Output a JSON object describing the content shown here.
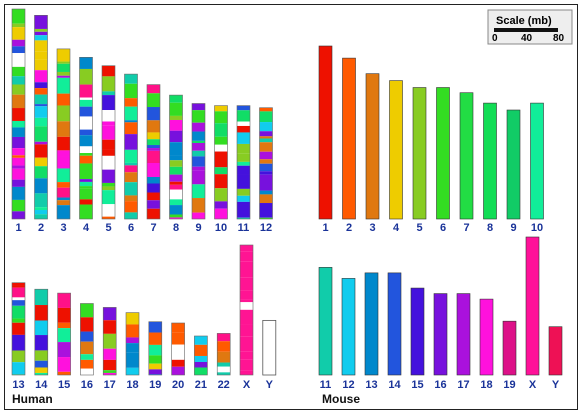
{
  "labels": {
    "human": "Human",
    "mouse": "Mouse"
  },
  "scale": {
    "title": "Scale (mb)",
    "ticks": [
      "0",
      "40",
      "80"
    ]
  },
  "human": {
    "top": [
      {
        "name": "1",
        "length": 1.0
      },
      {
        "name": "2",
        "length": 0.97
      },
      {
        "name": "3",
        "length": 0.81
      },
      {
        "name": "4",
        "length": 0.77
      },
      {
        "name": "5",
        "length": 0.73
      },
      {
        "name": "6",
        "length": 0.69
      },
      {
        "name": "7",
        "length": 0.64
      },
      {
        "name": "8",
        "length": 0.59
      },
      {
        "name": "9",
        "length": 0.55
      },
      {
        "name": "10",
        "length": 0.54
      },
      {
        "name": "11",
        "length": 0.54
      },
      {
        "name": "12",
        "length": 0.53
      }
    ],
    "bottom": [
      {
        "name": "13",
        "length": 0.71
      },
      {
        "name": "14",
        "length": 0.66
      },
      {
        "name": "15",
        "length": 0.63
      },
      {
        "name": "16",
        "length": 0.55
      },
      {
        "name": "17",
        "length": 0.52
      },
      {
        "name": "18",
        "length": 0.48
      },
      {
        "name": "19",
        "length": 0.41
      },
      {
        "name": "20",
        "length": 0.4
      },
      {
        "name": "21",
        "length": 0.3
      },
      {
        "name": "22",
        "length": 0.32
      },
      {
        "name": "X",
        "length": 1.0,
        "solid": "#ff1493"
      },
      {
        "name": "Y",
        "length": 0.42,
        "empty": true
      }
    ]
  },
  "mouse": {
    "top": [
      {
        "name": "1",
        "length": 1.0,
        "color": "#ee1100"
      },
      {
        "name": "2",
        "length": 0.93,
        "color": "#ff5a00"
      },
      {
        "name": "3",
        "length": 0.84,
        "color": "#e07810"
      },
      {
        "name": "4",
        "length": 0.8,
        "color": "#eecc00"
      },
      {
        "name": "5",
        "length": 0.76,
        "color": "#88cc22"
      },
      {
        "name": "6",
        "length": 0.76,
        "color": "#33dd22"
      },
      {
        "name": "7",
        "length": 0.73,
        "color": "#22dd44"
      },
      {
        "name": "8",
        "length": 0.67,
        "color": "#11dd55"
      },
      {
        "name": "9",
        "length": 0.63,
        "color": "#11cc66"
      },
      {
        "name": "10",
        "length": 0.67,
        "color": "#11ee99"
      }
    ],
    "bottom": [
      {
        "name": "11",
        "length": 0.78,
        "color": "#11ccaa"
      },
      {
        "name": "12",
        "length": 0.7,
        "color": "#11ccee"
      },
      {
        "name": "13",
        "length": 0.74,
        "color": "#0088cc"
      },
      {
        "name": "14",
        "length": 0.74,
        "color": "#2255dd"
      },
      {
        "name": "15",
        "length": 0.63,
        "color": "#4411dd"
      },
      {
        "name": "16",
        "length": 0.59,
        "color": "#7711dd"
      },
      {
        "name": "17",
        "length": 0.59,
        "color": "#aa11dd"
      },
      {
        "name": "18",
        "length": 0.55,
        "color": "#ff11dd"
      },
      {
        "name": "19",
        "length": 0.39,
        "color": "#dd1188"
      },
      {
        "name": "X",
        "length": 1.0,
        "color": "#ff1199"
      },
      {
        "name": "Y",
        "length": 0.35,
        "color": "#ee1155"
      }
    ]
  },
  "label_color": "#1a3399",
  "segment_palette": [
    "#ee1100",
    "#ff5a00",
    "#e07810",
    "#eecc00",
    "#88cc22",
    "#33dd22",
    "#11dd66",
    "#11ee99",
    "#11ccaa",
    "#11ccee",
    "#0088cc",
    "#2255dd",
    "#4411dd",
    "#7711dd",
    "#aa11dd",
    "#ff11dd",
    "#ff1188",
    "#ffffff"
  ]
}
